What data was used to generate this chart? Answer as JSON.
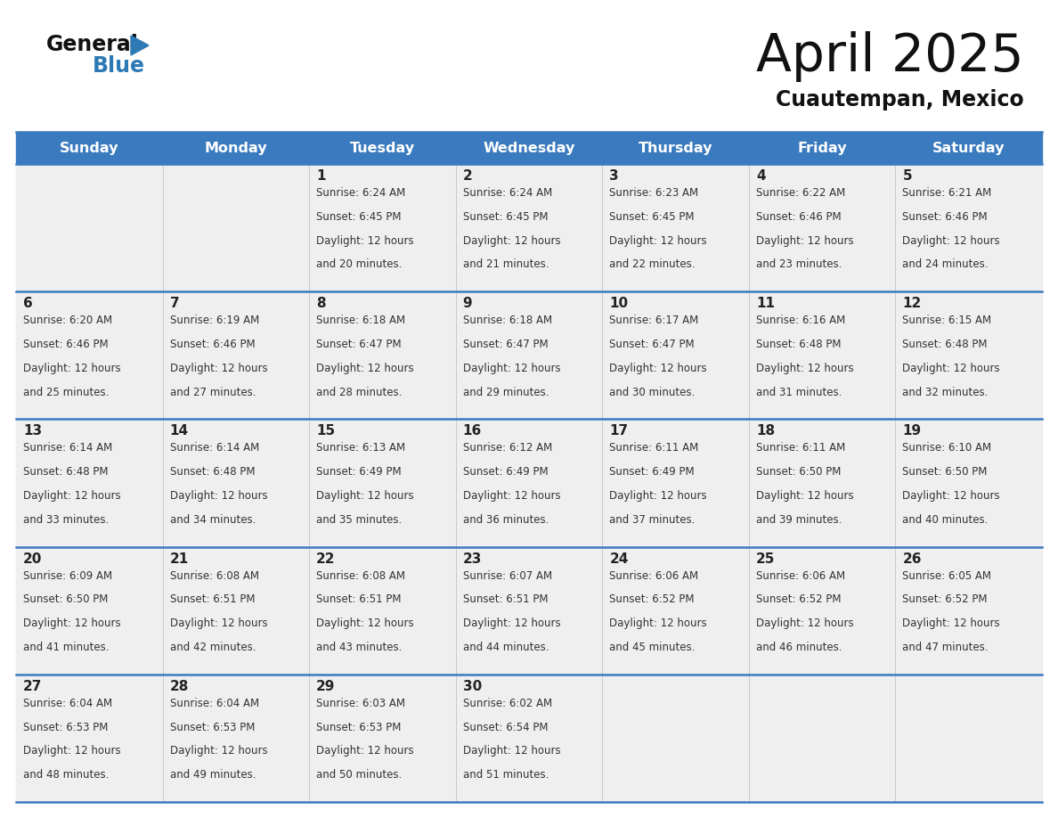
{
  "title": "April 2025",
  "subtitle": "Cuautempan, Mexico",
  "days_of_week": [
    "Sunday",
    "Monday",
    "Tuesday",
    "Wednesday",
    "Thursday",
    "Friday",
    "Saturday"
  ],
  "header_bg": "#3a7bbf",
  "header_text": "#ffffff",
  "cell_bg": "#efefef",
  "separator_color": "#3a7bbf",
  "day_num_color": "#222222",
  "cell_text_color": "#333333",
  "title_color": "#111111",
  "subtitle_color": "#111111",
  "logo_text_color": "#111111",
  "logo_blue_color": "#2e7ab5",
  "calendar_data": [
    [
      {
        "day": null,
        "sunrise": null,
        "sunset": null,
        "daylight_min": null
      },
      {
        "day": null,
        "sunrise": null,
        "sunset": null,
        "daylight_min": null
      },
      {
        "day": 1,
        "sunrise": "6:24 AM",
        "sunset": "6:45 PM",
        "daylight_min": 20
      },
      {
        "day": 2,
        "sunrise": "6:24 AM",
        "sunset": "6:45 PM",
        "daylight_min": 21
      },
      {
        "day": 3,
        "sunrise": "6:23 AM",
        "sunset": "6:45 PM",
        "daylight_min": 22
      },
      {
        "day": 4,
        "sunrise": "6:22 AM",
        "sunset": "6:46 PM",
        "daylight_min": 23
      },
      {
        "day": 5,
        "sunrise": "6:21 AM",
        "sunset": "6:46 PM",
        "daylight_min": 24
      }
    ],
    [
      {
        "day": 6,
        "sunrise": "6:20 AM",
        "sunset": "6:46 PM",
        "daylight_min": 25
      },
      {
        "day": 7,
        "sunrise": "6:19 AM",
        "sunset": "6:46 PM",
        "daylight_min": 27
      },
      {
        "day": 8,
        "sunrise": "6:18 AM",
        "sunset": "6:47 PM",
        "daylight_min": 28
      },
      {
        "day": 9,
        "sunrise": "6:18 AM",
        "sunset": "6:47 PM",
        "daylight_min": 29
      },
      {
        "day": 10,
        "sunrise": "6:17 AM",
        "sunset": "6:47 PM",
        "daylight_min": 30
      },
      {
        "day": 11,
        "sunrise": "6:16 AM",
        "sunset": "6:48 PM",
        "daylight_min": 31
      },
      {
        "day": 12,
        "sunrise": "6:15 AM",
        "sunset": "6:48 PM",
        "daylight_min": 32
      }
    ],
    [
      {
        "day": 13,
        "sunrise": "6:14 AM",
        "sunset": "6:48 PM",
        "daylight_min": 33
      },
      {
        "day": 14,
        "sunrise": "6:14 AM",
        "sunset": "6:48 PM",
        "daylight_min": 34
      },
      {
        "day": 15,
        "sunrise": "6:13 AM",
        "sunset": "6:49 PM",
        "daylight_min": 35
      },
      {
        "day": 16,
        "sunrise": "6:12 AM",
        "sunset": "6:49 PM",
        "daylight_min": 36
      },
      {
        "day": 17,
        "sunrise": "6:11 AM",
        "sunset": "6:49 PM",
        "daylight_min": 37
      },
      {
        "day": 18,
        "sunrise": "6:11 AM",
        "sunset": "6:50 PM",
        "daylight_min": 39
      },
      {
        "day": 19,
        "sunrise": "6:10 AM",
        "sunset": "6:50 PM",
        "daylight_min": 40
      }
    ],
    [
      {
        "day": 20,
        "sunrise": "6:09 AM",
        "sunset": "6:50 PM",
        "daylight_min": 41
      },
      {
        "day": 21,
        "sunrise": "6:08 AM",
        "sunset": "6:51 PM",
        "daylight_min": 42
      },
      {
        "day": 22,
        "sunrise": "6:08 AM",
        "sunset": "6:51 PM",
        "daylight_min": 43
      },
      {
        "day": 23,
        "sunrise": "6:07 AM",
        "sunset": "6:51 PM",
        "daylight_min": 44
      },
      {
        "day": 24,
        "sunrise": "6:06 AM",
        "sunset": "6:52 PM",
        "daylight_min": 45
      },
      {
        "day": 25,
        "sunrise": "6:06 AM",
        "sunset": "6:52 PM",
        "daylight_min": 46
      },
      {
        "day": 26,
        "sunrise": "6:05 AM",
        "sunset": "6:52 PM",
        "daylight_min": 47
      }
    ],
    [
      {
        "day": 27,
        "sunrise": "6:04 AM",
        "sunset": "6:53 PM",
        "daylight_min": 48
      },
      {
        "day": 28,
        "sunrise": "6:04 AM",
        "sunset": "6:53 PM",
        "daylight_min": 49
      },
      {
        "day": 29,
        "sunrise": "6:03 AM",
        "sunset": "6:53 PM",
        "daylight_min": 50
      },
      {
        "day": 30,
        "sunrise": "6:02 AM",
        "sunset": "6:54 PM",
        "daylight_min": 51
      },
      {
        "day": null,
        "sunrise": null,
        "sunset": null,
        "daylight_min": null
      },
      {
        "day": null,
        "sunrise": null,
        "sunset": null,
        "daylight_min": null
      },
      {
        "day": null,
        "sunrise": null,
        "sunset": null,
        "daylight_min": null
      }
    ]
  ]
}
